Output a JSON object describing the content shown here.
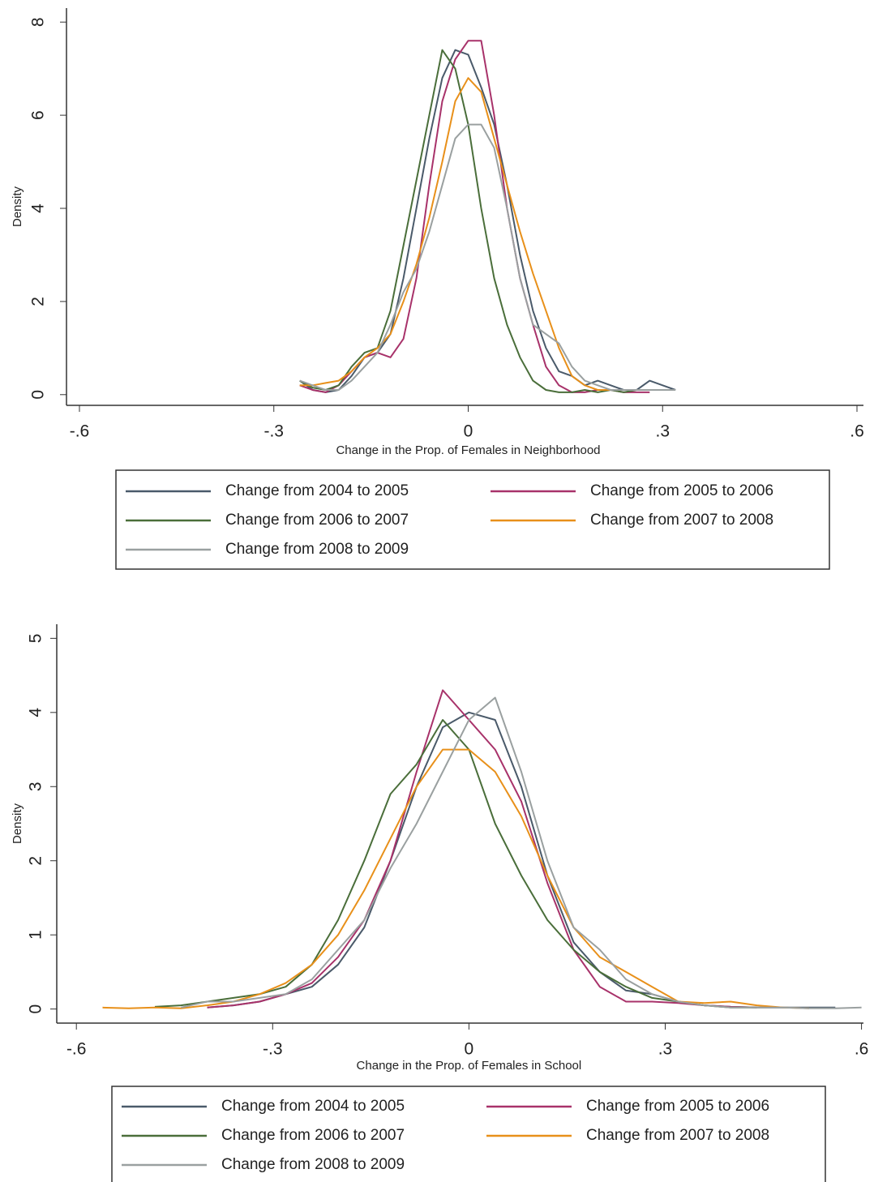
{
  "chart_data": [
    {
      "type": "line",
      "xlabel": "Change in the Prop. of Females in Neighborhood",
      "ylabel": "Density",
      "xlim": [
        -0.62,
        0.61
      ],
      "ylim": [
        -0.23,
        8.3
      ],
      "xticks": [
        {
          "value": -0.6,
          "label": "-.6"
        },
        {
          "value": -0.3,
          "label": "-.3"
        },
        0,
        {
          "value": 0.3,
          "label": ".3"
        },
        {
          "value": 0.6,
          "label": ".6"
        }
      ],
      "yticks": [
        0,
        2,
        4,
        6,
        8
      ],
      "legend_position": "bottom",
      "x": [
        -0.26,
        -0.24,
        -0.22,
        -0.2,
        -0.18,
        -0.16,
        -0.14,
        -0.12,
        -0.1,
        -0.08,
        -0.06,
        -0.04,
        -0.02,
        0,
        0.02,
        0.04,
        0.06,
        0.08,
        0.1,
        0.12,
        0.14,
        0.16,
        0.18,
        0.2,
        0.22,
        0.24,
        0.26,
        0.28,
        0.3,
        0.32
      ],
      "series": [
        {
          "name": "Change from 2004 to 2005",
          "color": "#4a5a6a",
          "values": [
            0.3,
            0.1,
            0.05,
            0.1,
            0.4,
            0.8,
            0.9,
            1.3,
            2.5,
            4.0,
            5.5,
            6.8,
            7.4,
            7.3,
            6.6,
            5.8,
            4.5,
            3.0,
            1.8,
            1.0,
            0.5,
            0.4,
            0.2,
            0.3,
            0.2,
            0.1,
            0.1,
            0.3,
            0.2,
            0.1
          ]
        },
        {
          "name": "Change from 2005 to 2006",
          "color": "#a8326a",
          "values": [
            0.2,
            0.1,
            0.05,
            0.2,
            0.5,
            0.8,
            0.9,
            0.8,
            1.2,
            2.5,
            4.5,
            6.3,
            7.2,
            7.6,
            7.6,
            6.0,
            4.0,
            2.5,
            1.5,
            0.6,
            0.2,
            0.05,
            0.05,
            0.1,
            0.1,
            0.05,
            0.05,
            0.05,
            null,
            null
          ]
        },
        {
          "name": "Change from 2006 to 2007",
          "color": "#4a6e3a",
          "values": [
            0.3,
            0.15,
            0.1,
            0.2,
            0.6,
            0.9,
            1.0,
            1.8,
            3.2,
            4.6,
            6.0,
            7.4,
            7.0,
            5.8,
            4.0,
            2.5,
            1.5,
            0.8,
            0.3,
            0.1,
            0.05,
            0.05,
            0.1,
            0.05,
            0.1,
            0.05,
            0.1,
            0.1,
            null,
            null
          ]
        },
        {
          "name": "Change from 2007 to 2008",
          "color": "#e8901a",
          "values": [
            0.2,
            0.2,
            0.25,
            0.3,
            0.5,
            0.8,
            1.0,
            1.3,
            2.0,
            2.8,
            3.8,
            5.0,
            6.3,
            6.8,
            6.5,
            5.5,
            4.5,
            3.5,
            2.6,
            1.8,
            1.0,
            0.4,
            0.2,
            0.1,
            0.1,
            0.1,
            0.1,
            0.1,
            null,
            null
          ]
        },
        {
          "name": "Change from 2008 to 2009",
          "color": "#9aa0a0",
          "values": [
            0.3,
            0.2,
            0.1,
            0.1,
            0.3,
            0.6,
            0.9,
            1.5,
            2.2,
            2.7,
            3.5,
            4.5,
            5.5,
            5.8,
            5.8,
            5.3,
            4.0,
            2.5,
            1.5,
            1.3,
            1.1,
            0.6,
            0.3,
            0.2,
            0.1,
            0.1,
            0.1,
            0.1,
            0.1,
            0.1
          ]
        }
      ]
    },
    {
      "type": "line",
      "xlabel": "Change in the Prop. of Females in School",
      "ylabel": "Density",
      "xlim": [
        -0.63,
        0.603
      ],
      "ylim": [
        -0.19,
        5.19
      ],
      "xticks": [
        {
          "value": -0.6,
          "label": "-.6"
        },
        {
          "value": -0.3,
          "label": "-.3"
        },
        0,
        {
          "value": 0.3,
          "label": ".3"
        },
        {
          "value": 0.6,
          "label": ".6"
        }
      ],
      "yticks": [
        0,
        1,
        2,
        3,
        4,
        5
      ],
      "legend_position": "bottom",
      "x": [
        -0.56,
        -0.52,
        -0.48,
        -0.44,
        -0.4,
        -0.36,
        -0.32,
        -0.28,
        -0.24,
        -0.2,
        -0.16,
        -0.12,
        -0.08,
        -0.04,
        0,
        0.04,
        0.08,
        0.12,
        0.16,
        0.2,
        0.24,
        0.28,
        0.32,
        0.36,
        0.4,
        0.44,
        0.48,
        0.52,
        0.56,
        0.6
      ],
      "series": [
        {
          "name": "Change from 2004 to 2005",
          "color": "#4a5a6a",
          "values": [
            null,
            null,
            null,
            null,
            0.02,
            0.05,
            0.1,
            0.2,
            0.3,
            0.6,
            1.1,
            2.0,
            3.0,
            3.8,
            4.0,
            3.9,
            3.0,
            1.8,
            0.9,
            0.5,
            0.25,
            0.2,
            0.1,
            0.05,
            0.03,
            0.02,
            0.02,
            0.02,
            0.02,
            null
          ]
        },
        {
          "name": "Change from 2005 to 2006",
          "color": "#a8326a",
          "values": [
            null,
            null,
            null,
            null,
            0.02,
            0.05,
            0.1,
            0.2,
            0.35,
            0.7,
            1.2,
            2.0,
            3.2,
            4.3,
            3.9,
            3.5,
            2.8,
            1.7,
            0.8,
            0.3,
            0.1,
            0.1,
            0.08,
            0.05,
            0.03,
            0.02,
            null,
            null,
            null,
            null
          ]
        },
        {
          "name": "Change from 2006 to 2007",
          "color": "#4a6e3a",
          "values": [
            null,
            null,
            0.03,
            0.05,
            0.1,
            0.15,
            0.2,
            0.3,
            0.6,
            1.2,
            2.0,
            2.9,
            3.3,
            3.9,
            3.5,
            2.5,
            1.8,
            1.2,
            0.8,
            0.5,
            0.3,
            0.15,
            0.1,
            0.05,
            0.02,
            0.02,
            null,
            null,
            null,
            null
          ]
        },
        {
          "name": "Change from 2007 to 2008",
          "color": "#e8901a",
          "values": [
            0.02,
            0.01,
            0.02,
            0.01,
            0.05,
            0.1,
            0.2,
            0.35,
            0.6,
            1.0,
            1.6,
            2.3,
            3.0,
            3.5,
            3.5,
            3.2,
            2.6,
            1.8,
            1.1,
            0.7,
            0.5,
            0.3,
            0.1,
            0.08,
            0.1,
            0.05,
            0.02,
            0.01,
            null,
            null
          ]
        },
        {
          "name": "Change from 2008 to 2009",
          "color": "#9aa0a0",
          "values": [
            null,
            null,
            null,
            0.02,
            0.1,
            0.1,
            0.15,
            0.2,
            0.4,
            0.8,
            1.2,
            1.9,
            2.5,
            3.2,
            3.9,
            4.2,
            3.2,
            2.0,
            1.1,
            0.8,
            0.4,
            0.2,
            0.1,
            0.05,
            0.02,
            0.02,
            0.02,
            0.01,
            0.01,
            0.02
          ]
        }
      ]
    }
  ]
}
